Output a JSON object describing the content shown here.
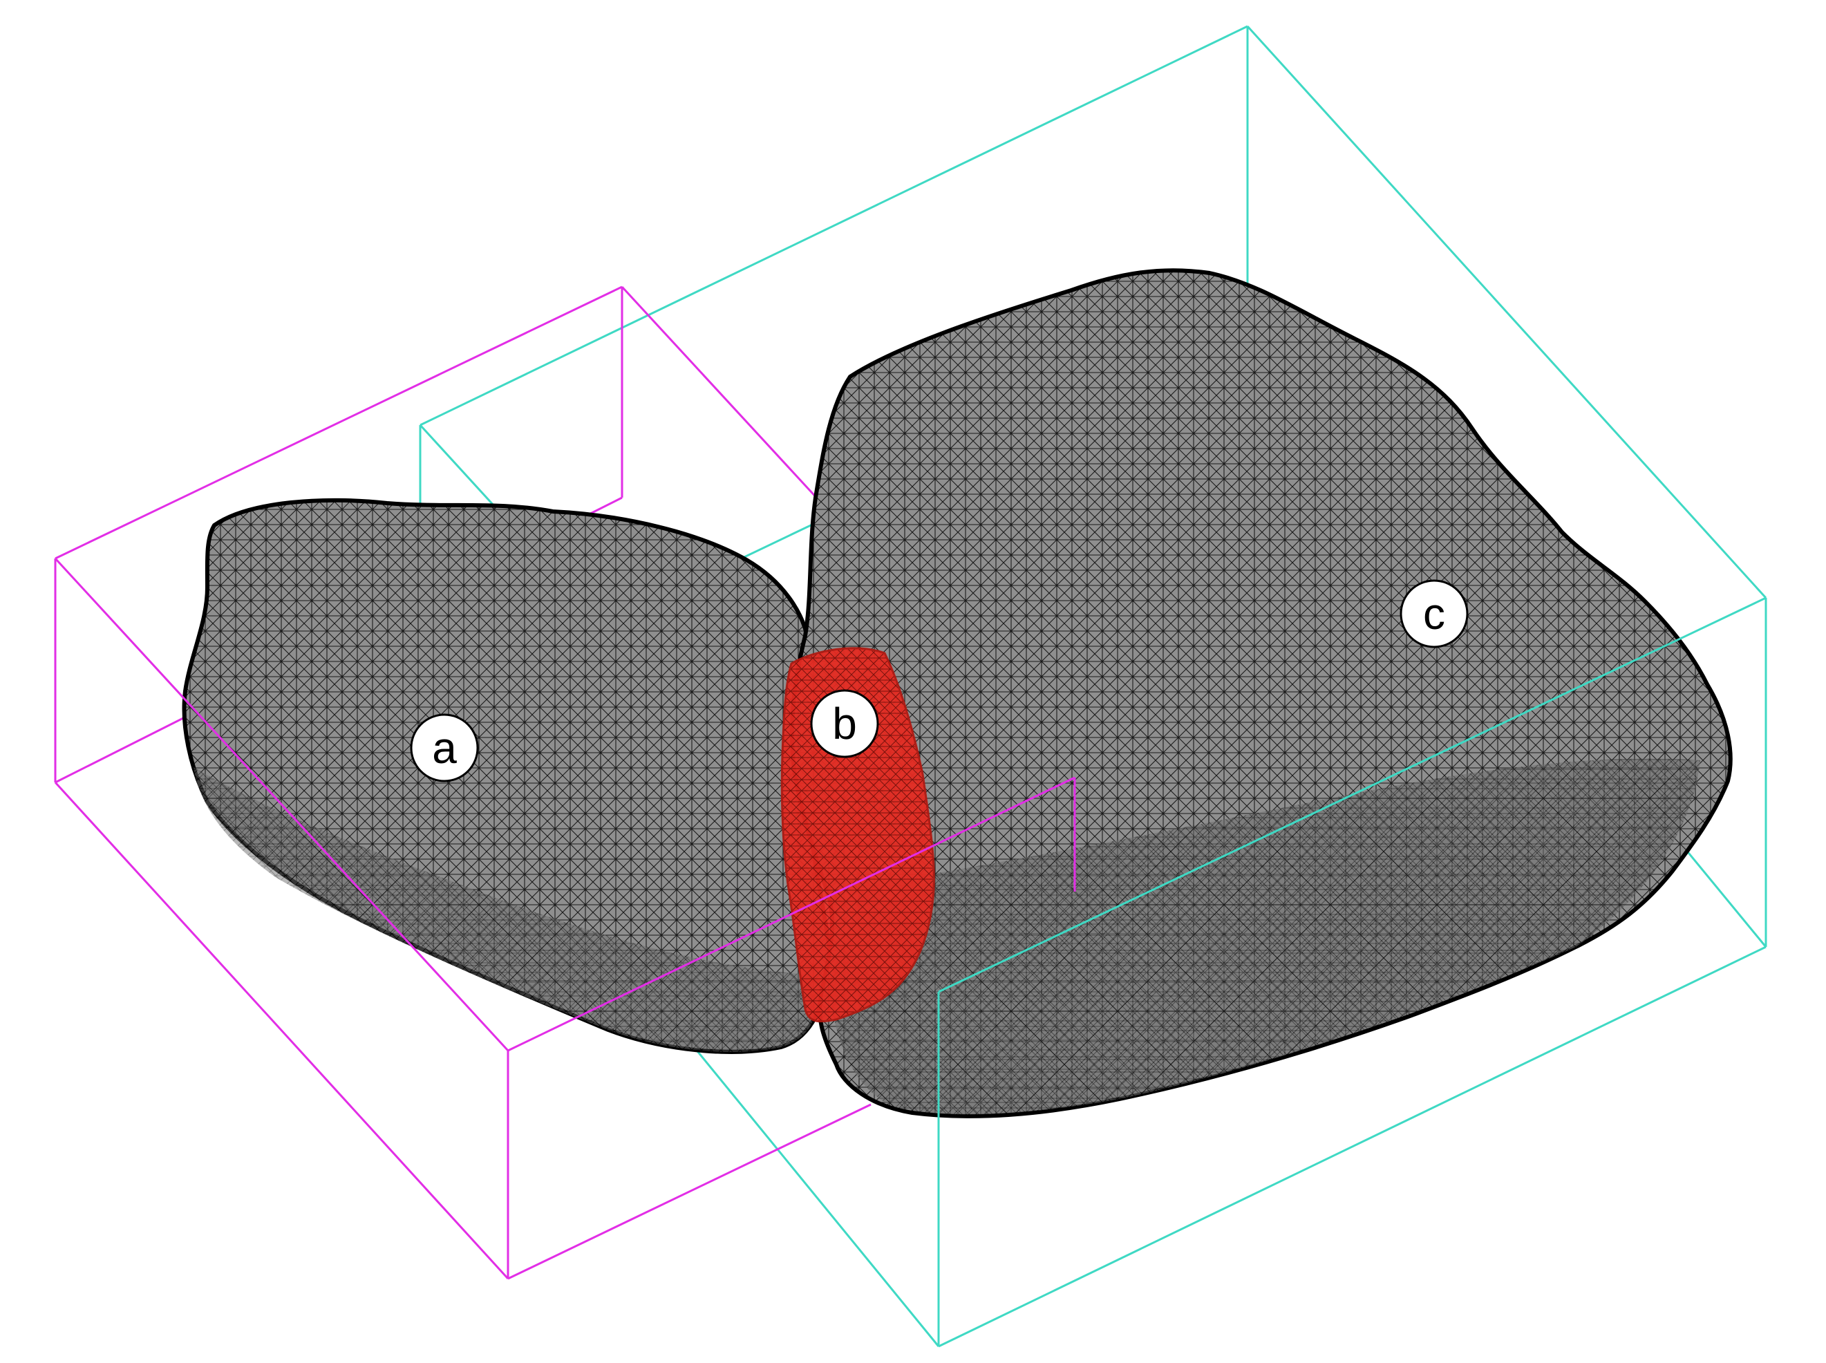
{
  "figure": {
    "colors": {
      "background": "#ffffff",
      "mesh_fill": "#8a8a8a",
      "mesh_line": "#000000",
      "neck_region": "#e2231a",
      "box_small_lobe": "#e22ee6",
      "box_large_lobe": "#3fd9c4",
      "label_circle_fill": "#ffffff",
      "label_circle_stroke": "#000000"
    },
    "parts": [
      {
        "id": "a",
        "label": "a"
      },
      {
        "id": "b",
        "label": "b"
      },
      {
        "id": "c",
        "label": "c"
      }
    ]
  }
}
